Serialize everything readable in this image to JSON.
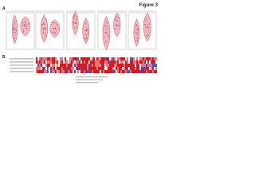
{
  "figure": {
    "title": "Figure 3",
    "panel_a": {
      "label": "A"
    },
    "panel_b": {
      "label": "B"
    }
  }
}
